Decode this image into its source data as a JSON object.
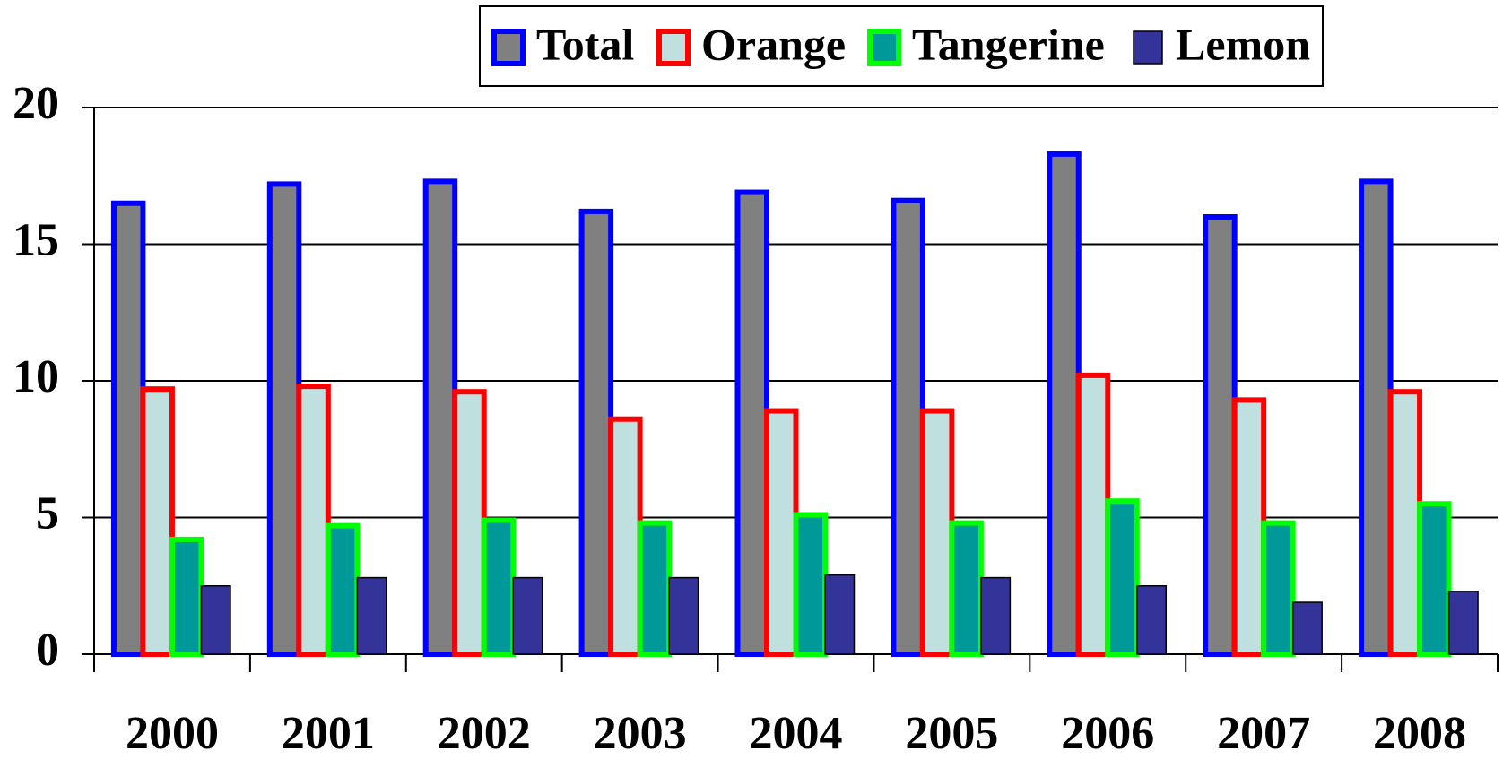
{
  "chart_data": {
    "type": "bar",
    "categories": [
      "2000",
      "2001",
      "2002",
      "2003",
      "2004",
      "2005",
      "2006",
      "2007",
      "2008"
    ],
    "series": [
      {
        "name": "Total",
        "color": "#808080",
        "edgecolor": "#0000ff",
        "values": [
          16.5,
          17.2,
          17.3,
          16.2,
          16.9,
          16.6,
          18.3,
          16.0,
          17.3
        ]
      },
      {
        "name": "Orange",
        "color": "#c0e0e0",
        "edgecolor": "#ff0000",
        "values": [
          9.7,
          9.8,
          9.6,
          8.6,
          8.9,
          8.9,
          10.2,
          9.3,
          9.6
        ]
      },
      {
        "name": "Tangerine",
        "color": "#009999",
        "edgecolor": "#00ff00",
        "values": [
          4.2,
          4.7,
          4.9,
          4.8,
          5.1,
          4.8,
          5.6,
          4.8,
          5.5
        ]
      },
      {
        "name": "Lemon",
        "color": "#333399",
        "edgecolor": "#000000",
        "values": [
          2.5,
          2.8,
          2.8,
          2.8,
          2.9,
          2.8,
          2.5,
          1.9,
          2.3
        ]
      }
    ],
    "ylim": [
      0,
      20
    ],
    "yticks": [
      0,
      5,
      10,
      15,
      20
    ],
    "grid": true,
    "legend": "top"
  }
}
